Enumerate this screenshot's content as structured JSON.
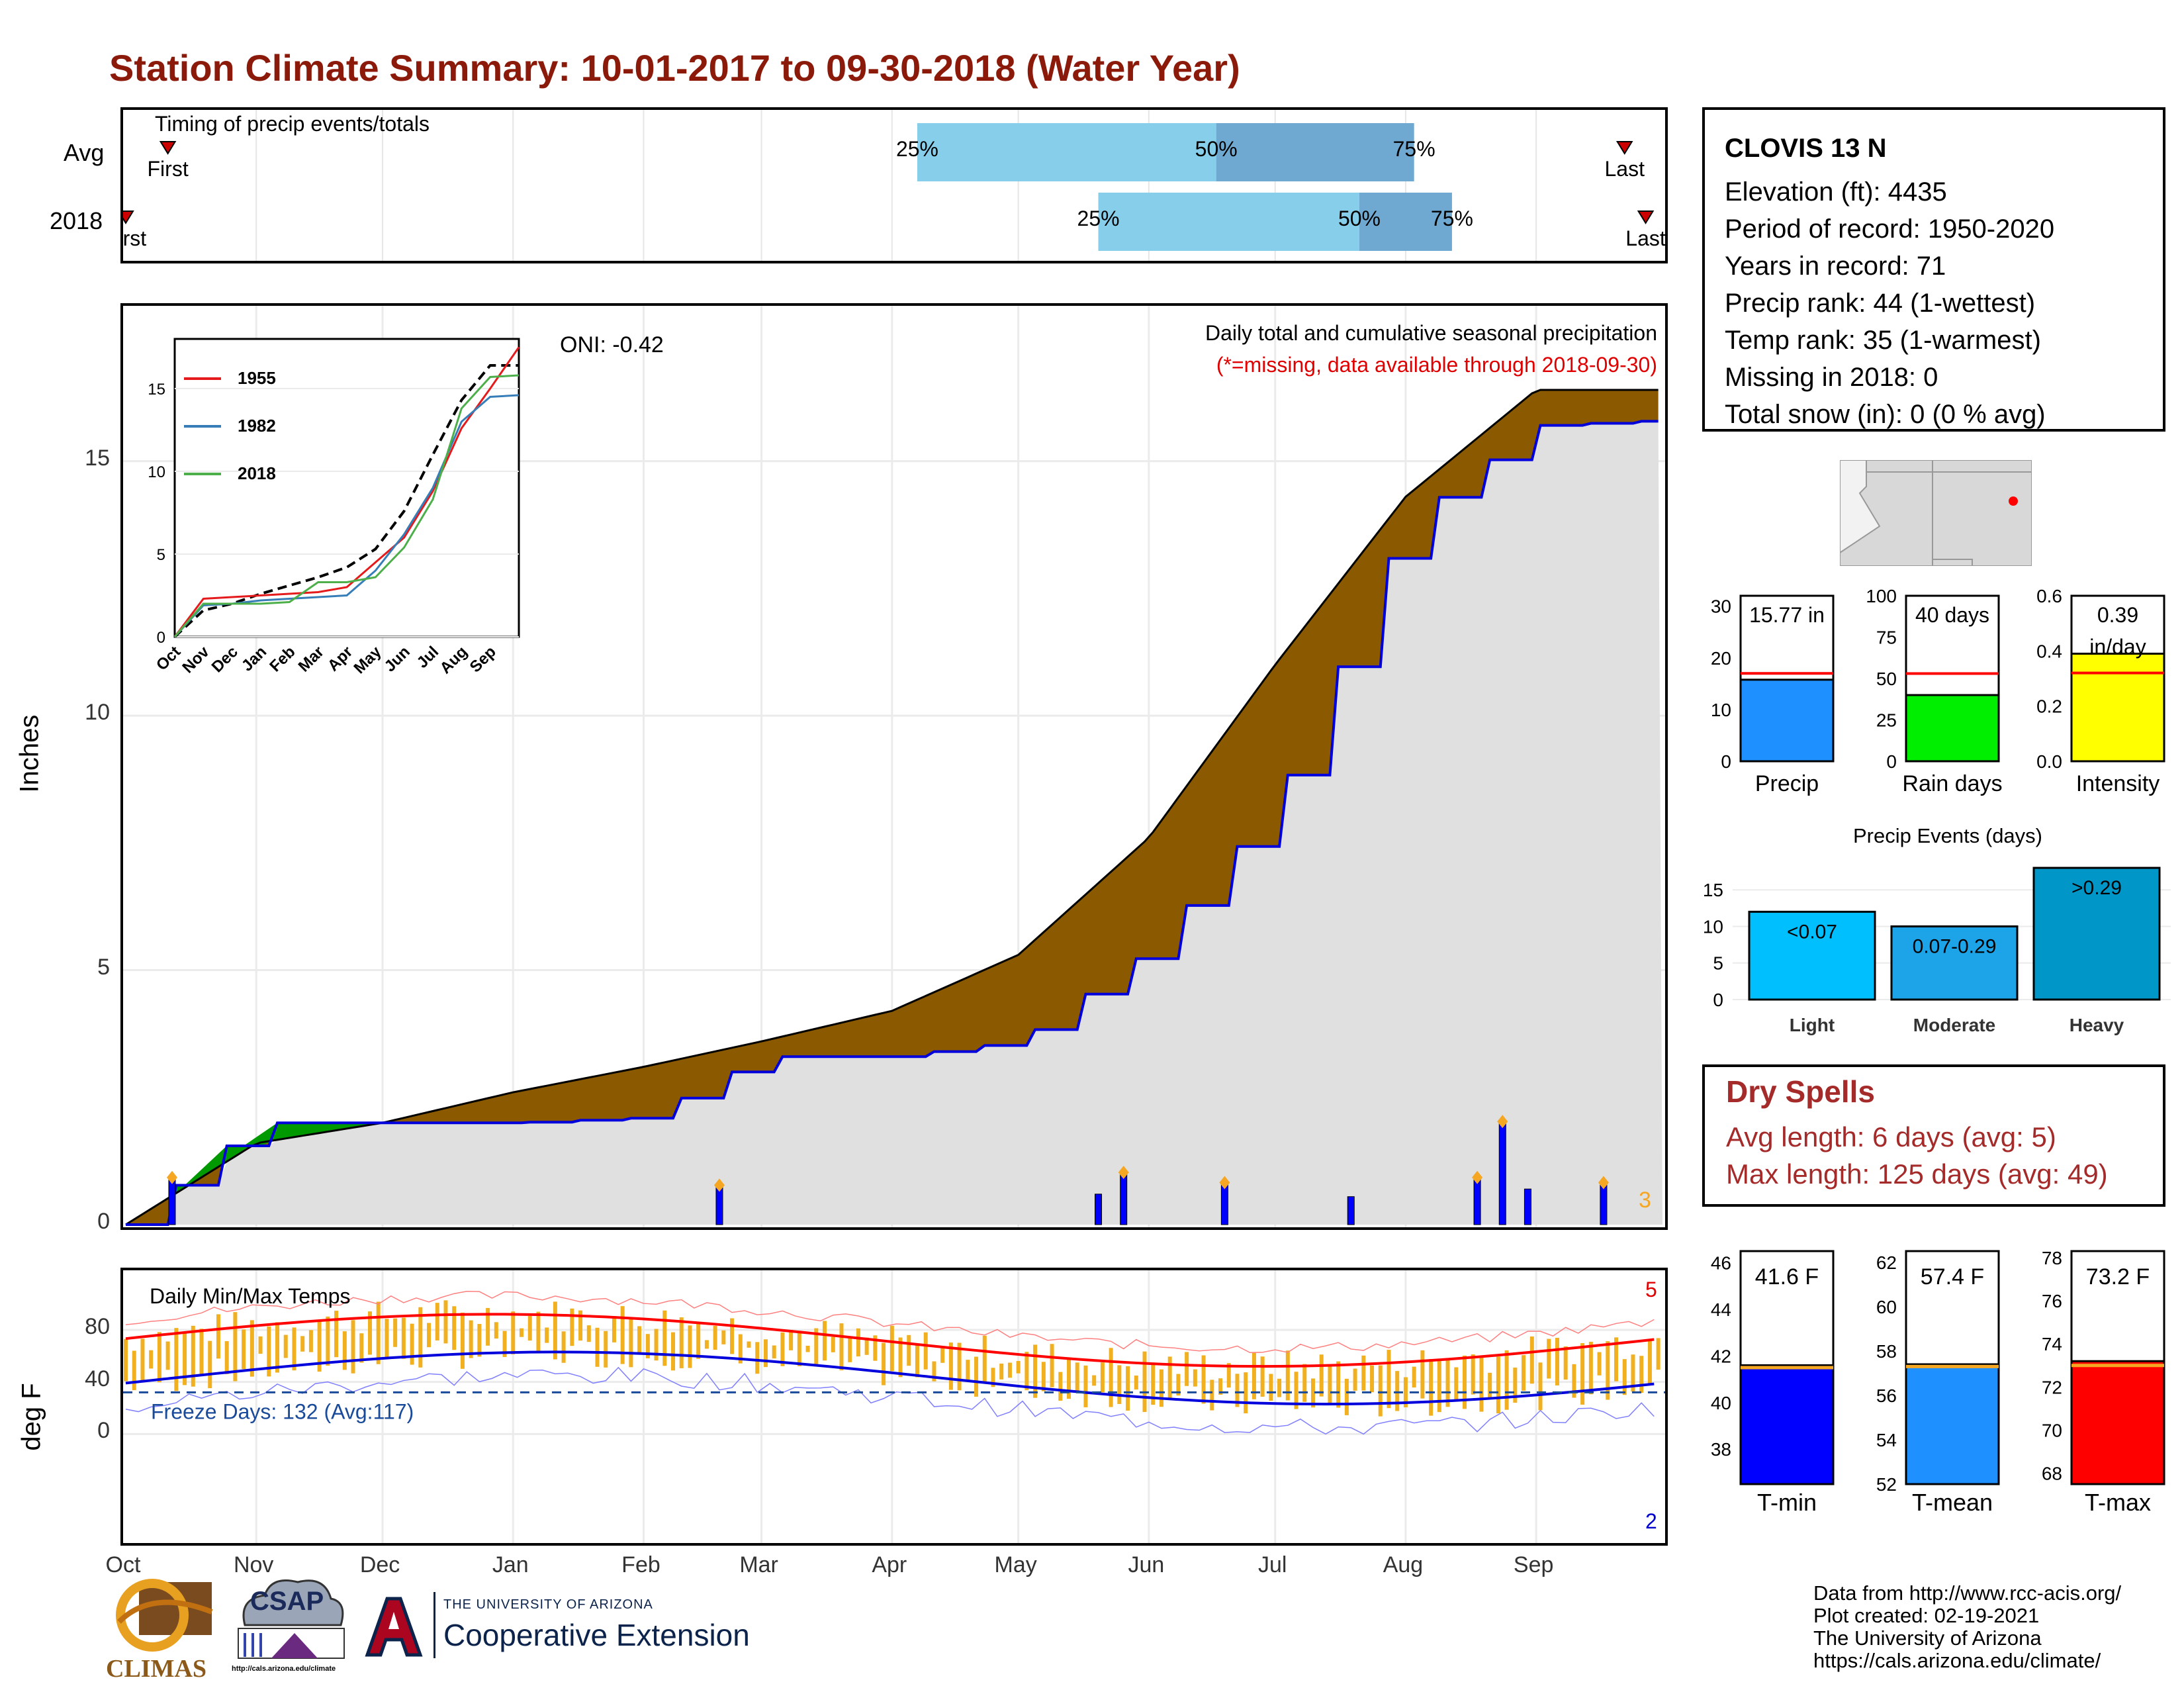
{
  "title": "Station Climate Summary: 10-01-2017 to 09-30-2018 (Water Year)",
  "timing": {
    "label": "Timing of precip events/totals",
    "rows": [
      {
        "name": "Avg",
        "first_label": "First",
        "last_label": "Last",
        "p25": "25%",
        "p50": "50%",
        "p75": "75%",
        "first_doy": 10,
        "last_doy": 356,
        "q25": 188,
        "q50": 259,
        "q75": 306
      },
      {
        "name": "2018",
        "first_label": "First",
        "last_label": "Last",
        "p25": "25%",
        "p50": "50%",
        "p75": "75%",
        "first_doy": 0,
        "last_doy": 361,
        "q25": 231,
        "q50": 293,
        "q75": 315
      }
    ]
  },
  "precip_panel": {
    "ylabel": "Inches",
    "oni": "ONI: -0.42",
    "subtitle1": "Daily total and cumulative seasonal precipitation",
    "subtitle2": "(*=missing, data available through 2018-09-30)",
    "count_label": "3",
    "yticks": [
      "0",
      "5",
      "10",
      "15"
    ]
  },
  "inset": {
    "legend": [
      "1955",
      "1982",
      "2018"
    ],
    "legend_colors": [
      "#e41a1c",
      "#377eb8",
      "#4daf4a"
    ],
    "yticks": [
      "0",
      "5",
      "10",
      "15"
    ],
    "xticks": [
      "Oct",
      "Nov",
      "Dec",
      "Jan",
      "Feb",
      "Mar",
      "Apr",
      "May",
      "Jun",
      "Jul",
      "Aug",
      "Sep"
    ]
  },
  "temp_panel": {
    "ylabel": "deg F",
    "label": "Daily Min/Max Temps",
    "freeze_label": "Freeze Days: 132 (Avg:117)",
    "count_hi": "5",
    "count_lo": "2",
    "yticks": [
      "0",
      "40",
      "80"
    ]
  },
  "months": [
    "Oct",
    "Nov",
    "Dec",
    "Jan",
    "Feb",
    "Mar",
    "Apr",
    "May",
    "Jun",
    "Jul",
    "Aug",
    "Sep"
  ],
  "station": {
    "name": "CLOVIS 13 N",
    "elevation": "Elevation (ft): 4435",
    "period": "Period of record: 1950-2020",
    "years": "Years in record: 71",
    "precip_rank": "Precip rank: 44 (1-wettest)",
    "temp_rank": "Temp rank: 35 (1-warmest)",
    "missing": "Missing in 2018: 0",
    "snow": "Total snow (in): 0 (0 % avg)"
  },
  "mini_bars": [
    {
      "label": "Precip",
      "value_label": "15.77 in",
      "value": 15.77,
      "avg": 17,
      "ymax": 32,
      "ticks": [
        "0",
        "10",
        "20",
        "30"
      ],
      "color": "#1e90ff"
    },
    {
      "label": "Rain days",
      "value_label": "40 days",
      "value": 40,
      "avg": 53,
      "ymax": 100,
      "ticks": [
        "0",
        "25",
        "50",
        "75",
        "100"
      ],
      "color": "#00ee00"
    },
    {
      "label": "Intensity",
      "value_label": "0.39 in/day",
      "value": 0.39,
      "avg": 0.32,
      "ymax": 0.6,
      "ticks": [
        "0.0",
        "0.2",
        "0.4",
        "0.6"
      ],
      "color": "#ffff00"
    }
  ],
  "events": {
    "title": "Precip Events (days)",
    "ticks": [
      "0",
      "5",
      "10",
      "15"
    ],
    "bars": [
      {
        "label": "Light",
        "value_label": "<0.07",
        "value": 12,
        "color": "#00bfff"
      },
      {
        "label": "Moderate",
        "value_label": "0.07-0.29",
        "value": 10,
        "color": "#1ca3e8"
      },
      {
        "label": "Heavy",
        "value_label": ">0.29",
        "value": 18,
        "color": "#0096c8"
      }
    ]
  },
  "dry_spells": {
    "title": "Dry Spells",
    "avg": "Avg length: 6 days (avg: 5)",
    "max": "Max length: 125 days (avg: 49)"
  },
  "temp_bars": [
    {
      "label": "T-min",
      "value_label": "41.6 F",
      "value": 41.6,
      "avg": 41.5,
      "ymin": 36.5,
      "ymax": 46.5,
      "ticks": [
        "38",
        "40",
        "42",
        "44",
        "46"
      ],
      "color": "#0000ff"
    },
    {
      "label": "T-mean",
      "value_label": "57.4 F",
      "value": 57.4,
      "avg": 57.3,
      "ymin": 52,
      "ymax": 62.5,
      "ticks": [
        "52",
        "54",
        "56",
        "58",
        "60",
        "62"
      ],
      "color": "#1e90ff"
    },
    {
      "label": "T-max",
      "value_label": "73.2 F",
      "value": 73.2,
      "avg": 73.0,
      "ymin": 67.5,
      "ymax": 78.3,
      "ticks": [
        "68",
        "70",
        "72",
        "74",
        "76",
        "78"
      ],
      "color": "#ff0000"
    }
  ],
  "credits": [
    "Data from http://www.rcc-acis.org/",
    "Plot created: 02-19-2021",
    "The University of Arizona",
    "https://cals.arizona.edu/climate/"
  ],
  "logos": {
    "climas": "CLIMAS",
    "csap": "CSAP",
    "csap_url": "http://cals.arizona.edu/climate",
    "ua_small": "THE UNIVERSITY OF ARIZONA",
    "ua_big": "Cooperative Extension"
  },
  "chart_data": {
    "type": "area",
    "title": "Daily total and cumulative seasonal precipitation",
    "ylabel": "Inches",
    "ylim": [
      0,
      18
    ],
    "x": [
      "Oct",
      "Nov",
      "Dec",
      "Jan",
      "Feb",
      "Mar",
      "Apr",
      "May",
      "Jun",
      "Jul",
      "Aug",
      "Sep",
      "Oct"
    ],
    "series": [
      {
        "name": "Avg",
        "values": [
          0,
          1.6,
          2.0,
          2.6,
          3.1,
          3.6,
          4.2,
          5.3,
          7.6,
          11.0,
          14.3,
          16.4,
          16.4
        ]
      },
      {
        "name": "2018",
        "values": [
          0,
          2.0,
          2.0,
          2.0,
          2.1,
          3.3,
          3.3,
          3.6,
          5.4,
          8.3,
          13.8,
          15.7,
          15.8
        ]
      }
    ],
    "daily_bars": [
      {
        "x": "Oct",
        "value": 0.9
      },
      {
        "x": "Feb",
        "value": 0.75
      },
      {
        "x": "May",
        "value": 0.6
      },
      {
        "x": "May",
        "value": 1.0
      },
      {
        "x": "Jun",
        "value": 0.8
      },
      {
        "x": "Jul",
        "value": 0.55
      },
      {
        "x": "Aug",
        "value": 0.9
      },
      {
        "x": "Aug",
        "value": 2.0
      },
      {
        "x": "Aug",
        "value": 0.7
      },
      {
        "x": "Sep",
        "value": 0.8
      }
    ]
  }
}
